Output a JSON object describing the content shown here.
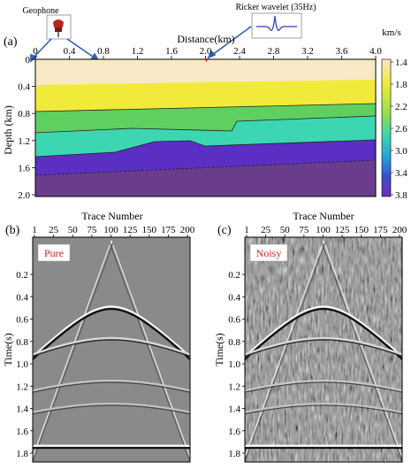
{
  "figure": {
    "panel_a": {
      "label": "(a)",
      "xlabel": "Distance(km)",
      "ylabel": "Depth (km)",
      "x_ticks": [
        "0",
        "0.4",
        "0.8",
        "1.2",
        "1.6",
        "2.0",
        "2.4",
        "2.8",
        "3.2",
        "3.6",
        "4.0"
      ],
      "y_ticks": [
        "0",
        "0.4",
        "0.8",
        "1.2",
        "1.6",
        "2.0"
      ],
      "colorbar": {
        "unit": "km/s",
        "ticks": [
          "1.4",
          "1.8",
          "2.2",
          "2.6",
          "3.0",
          "3.4",
          "3.8"
        ]
      },
      "inset_geophone": {
        "title": "Geophone",
        "icon": "geophone-icon"
      },
      "inset_wavelet": {
        "title": "Ricker wavelet (35Hz)",
        "icon": "ricker-wavelet-icon"
      },
      "colors": {
        "layer1": "#f7e9c5",
        "layer2": "#f2ea3a",
        "layer3": "#5fd05f",
        "layer4": "#3dd6b2",
        "layer5": "#5b2fc4",
        "layer6": "#6a3d8c"
      }
    },
    "panel_b": {
      "label": "(b)",
      "tag": "Pure",
      "xlabel": "Trace Number",
      "ylabel": "Time(s)",
      "x_ticks": [
        "1",
        "25",
        "50",
        "75",
        "100",
        "125",
        "150",
        "175",
        "200"
      ],
      "y_ticks": [
        "0.2",
        "0.4",
        "0.6",
        "0.8",
        "1.0",
        "1.2",
        "1.4",
        "1.6",
        "1.8"
      ]
    },
    "panel_c": {
      "label": "(c)",
      "tag": "Noisy",
      "xlabel": "Trace Number",
      "ylabel": "Time(s)",
      "x_ticks": [
        "1",
        "25",
        "50",
        "75",
        "100",
        "125",
        "150",
        "175",
        "200"
      ],
      "y_ticks": [
        "0.2",
        "0.4",
        "0.6",
        "0.8",
        "1.0",
        "1.2",
        "1.4",
        "1.6",
        "1.8"
      ]
    }
  }
}
